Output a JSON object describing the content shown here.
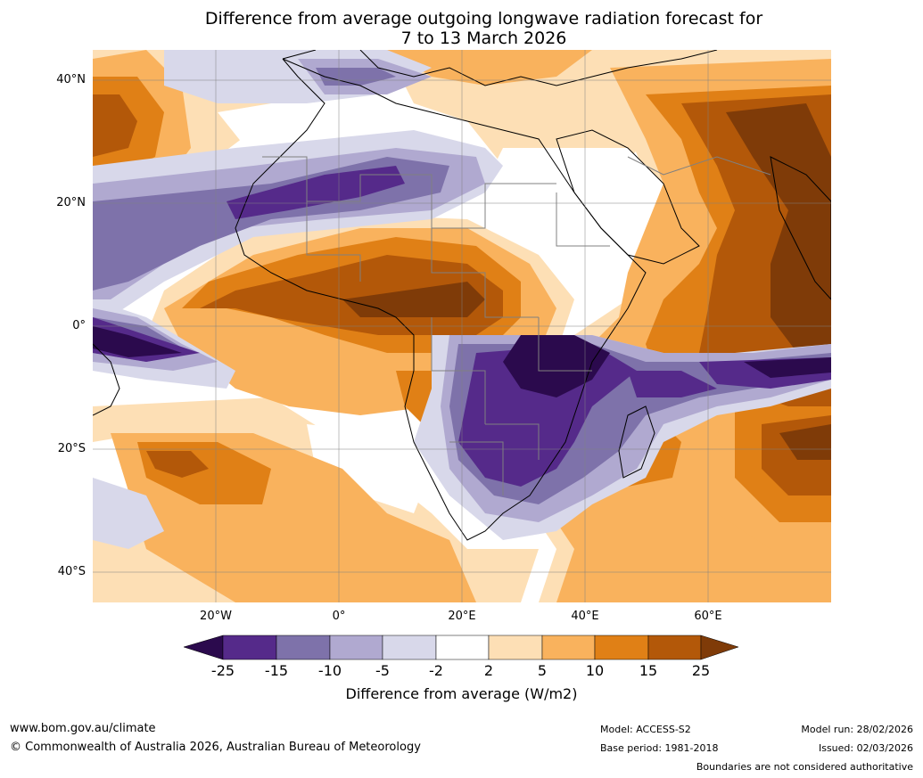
{
  "title": {
    "line1": "Difference from average outgoing longwave radiation forecast for",
    "line2": "7 to 13 March 2026"
  },
  "map": {
    "lat_labels": [
      "40°N",
      "20°N",
      "0°",
      "20°S",
      "40°S"
    ],
    "lon_labels": [
      "20°W",
      "0°",
      "20°E",
      "40°E",
      "60°E"
    ],
    "colors": {
      "lt-25": "#2b0a4d",
      "m25_m15": "#552a8a",
      "m15_m10": "#7e72aa",
      "m10_m5": "#b0a9d0",
      "m5_m2": "#d8d8ea",
      "m2_2": "#ffffff",
      "2_5": "#fddfb5",
      "5_10": "#f9b25d",
      "10_15": "#e08016",
      "15_25": "#b35809",
      "gt25": "#7f3b08",
      "coast": "#000000",
      "border": "#808080",
      "grid": "#808080"
    }
  },
  "colorbar": {
    "ticks": [
      "-25",
      "-15",
      "-10",
      "-5",
      "-2",
      "2",
      "5",
      "10",
      "15",
      "25"
    ],
    "colors": [
      "#2b0a4d",
      "#552a8a",
      "#7e72aa",
      "#b0a9d0",
      "#d8d8ea",
      "#ffffff",
      "#fddfb5",
      "#f9b25d",
      "#e08016",
      "#b35809",
      "#7f3b08"
    ],
    "label": "Difference from average (W/m2)"
  },
  "footer": {
    "website": "www.bom.gov.au/climate",
    "copyright": "© Commonwealth of Australia 2026, Australian Bureau of Meteorology",
    "model": "Model: ACCESS-S2",
    "base_period": "Base period: 1981-2018",
    "model_run": "Model run: 28/02/2026",
    "issued": "Issued: 02/03/2026",
    "disclaimer": "Boundaries are not considered authoritative"
  }
}
